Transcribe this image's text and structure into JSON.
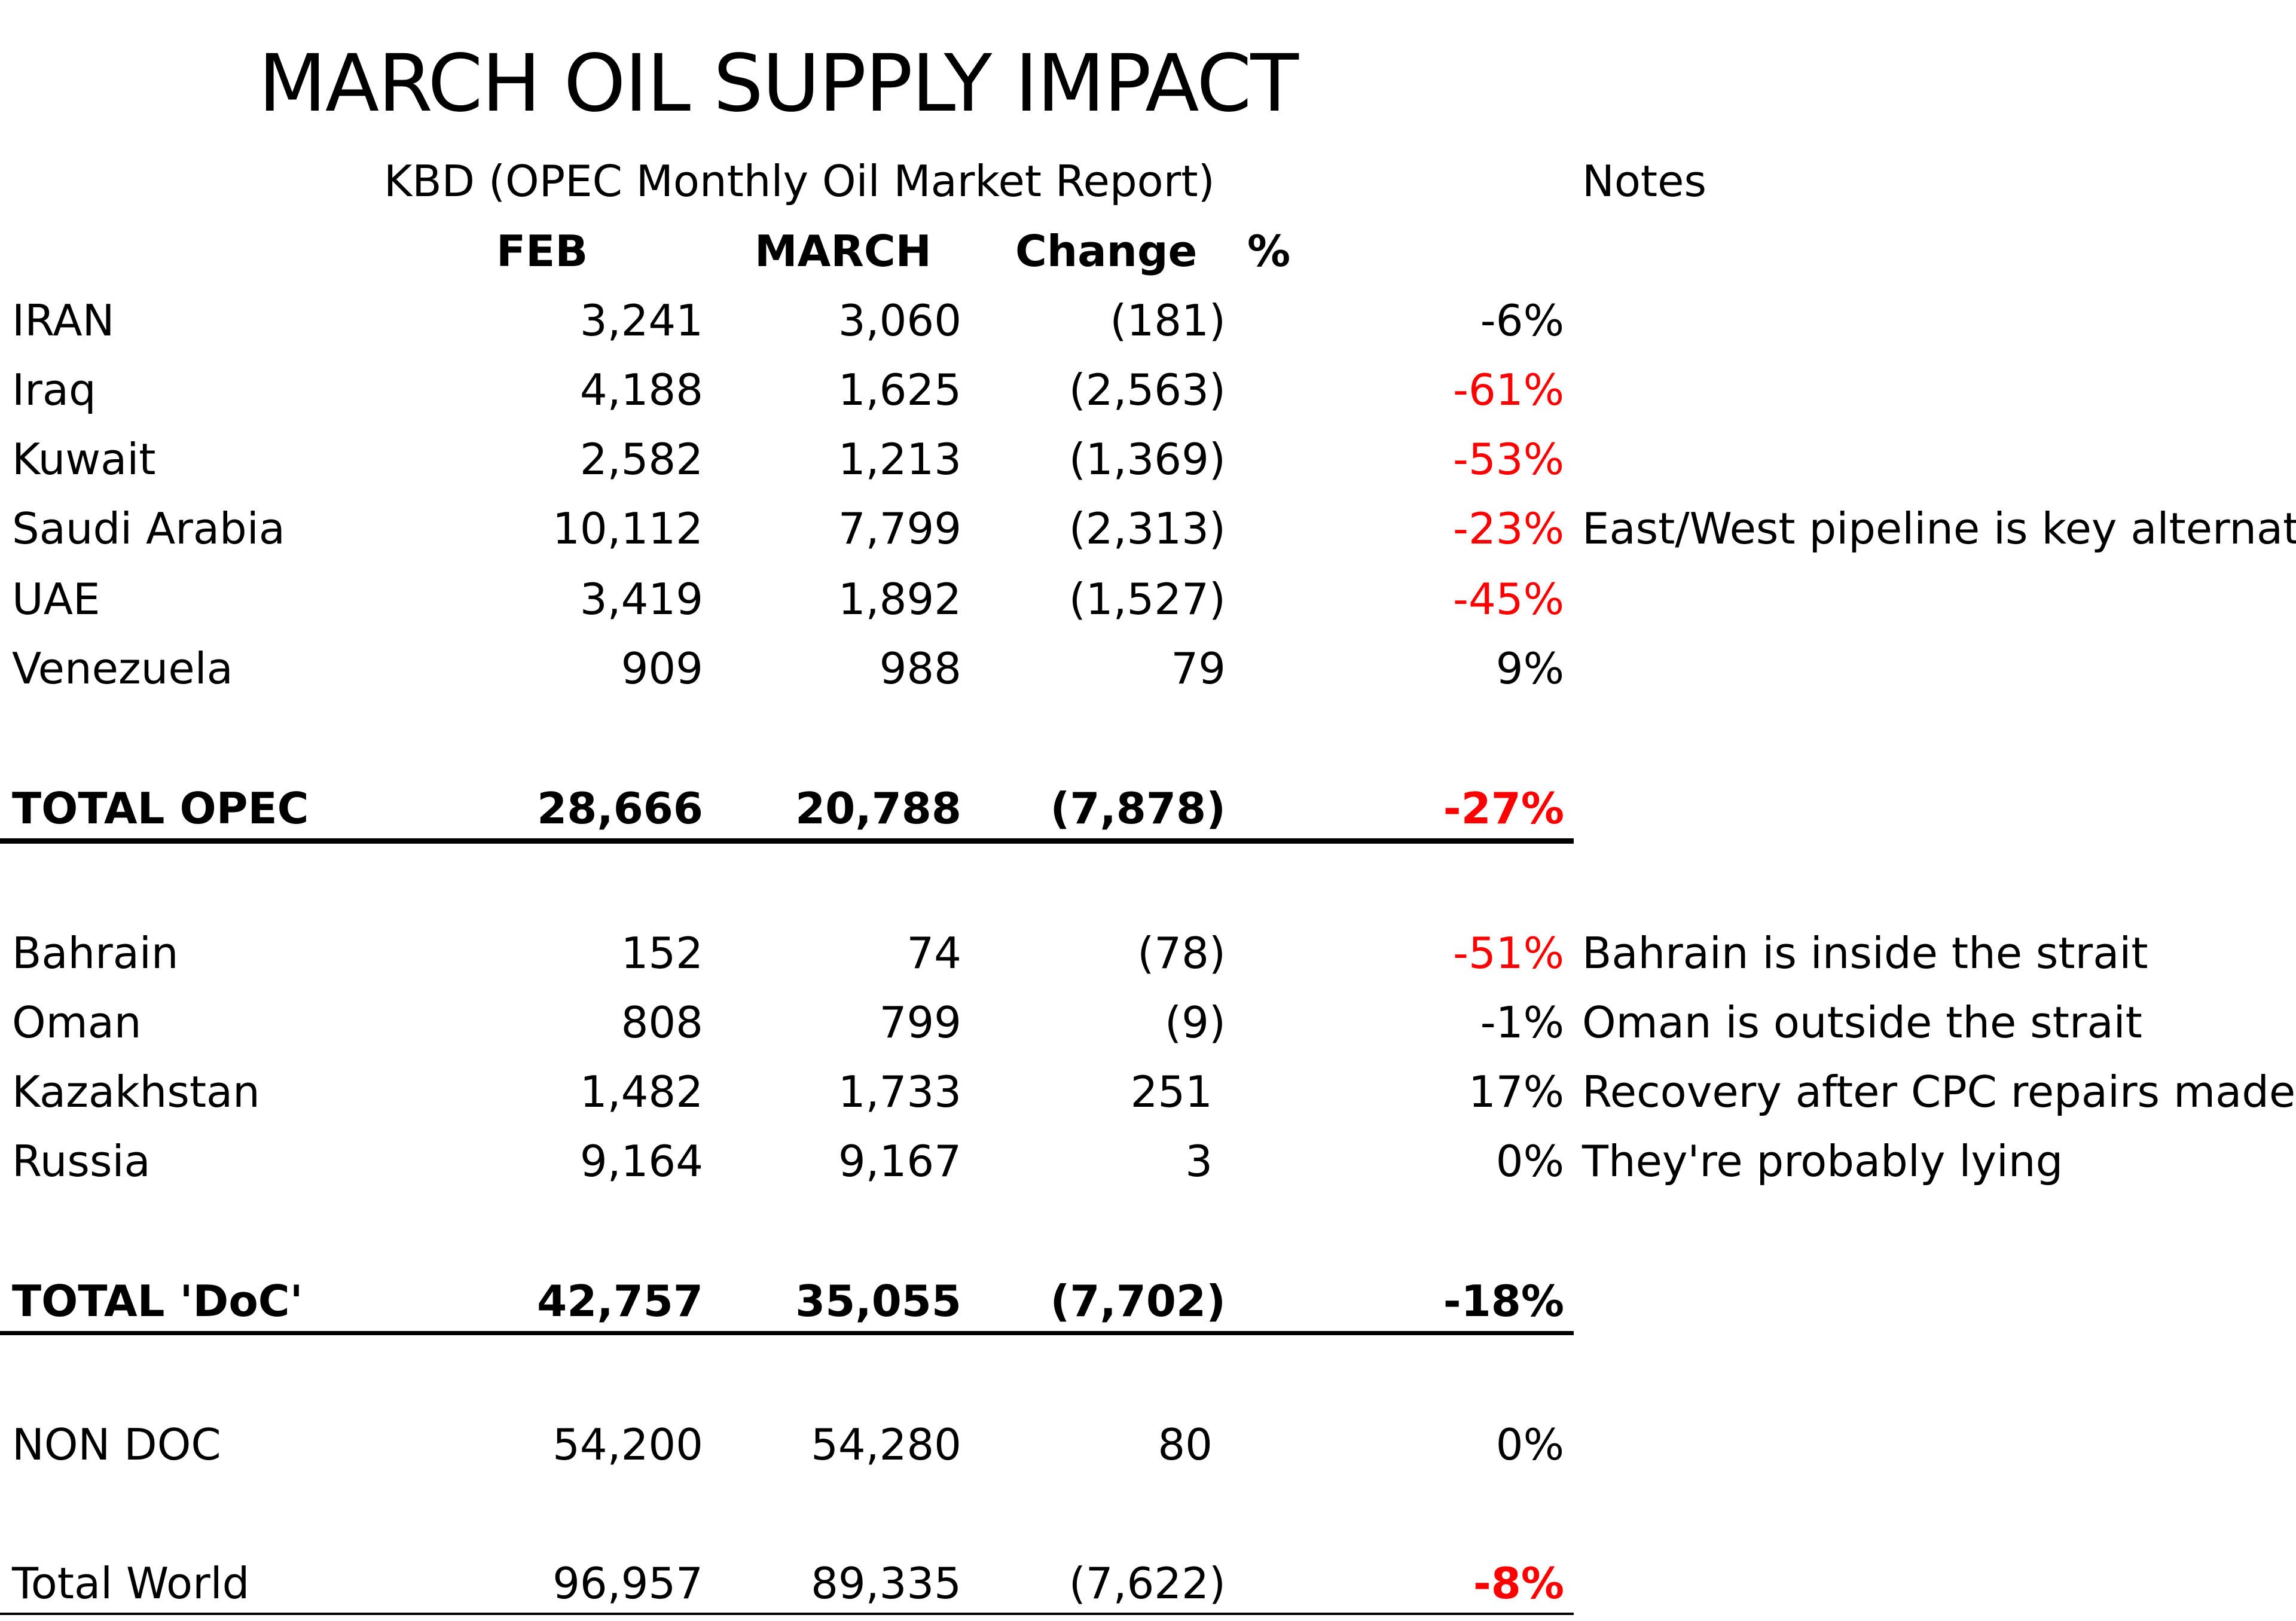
{
  "title": "MARCH OIL SUPPLY IMPACT",
  "subtitle": "KBD (OPEC Monthly Oil Market Report)",
  "notes_header": "Notes",
  "columns": {
    "feb": "FEB",
    "march": "MARCH",
    "change": "Change",
    "pct": "%"
  },
  "opec_rows": [
    {
      "label": "IRAN",
      "feb": "3,241",
      "march": "3,060",
      "change": "(181)",
      "pct": "-6%",
      "pct_red": false,
      "note": ""
    },
    {
      "label": "Iraq",
      "feb": "4,188",
      "march": "1,625",
      "change": "(2,563)",
      "pct": "-61%",
      "pct_red": true,
      "note": ""
    },
    {
      "label": "Kuwait",
      "feb": "2,582",
      "march": "1,213",
      "change": "(1,369)",
      "pct": "-53%",
      "pct_red": true,
      "note": ""
    },
    {
      "label": "Saudi Arabia",
      "feb": "10,112",
      "march": "7,799",
      "change": "(2,313)",
      "pct": "-23%",
      "pct_red": true,
      "note": "East/West pipeline is key alternati"
    },
    {
      "label": "UAE",
      "feb": "3,419",
      "march": "1,892",
      "change": "(1,527)",
      "pct": "-45%",
      "pct_red": true,
      "note": ""
    },
    {
      "label": "Venezuela",
      "feb": "909",
      "march": "988",
      "change": "79",
      "pct": "9%",
      "pct_red": false,
      "note": ""
    }
  ],
  "total_opec": {
    "label": "TOTAL OPEC",
    "feb": "28,666",
    "march": "20,788",
    "change": "(7,878)",
    "pct": "-27%",
    "pct_red": true
  },
  "doc_rows": [
    {
      "label": "Bahrain",
      "feb": "152",
      "march": "74",
      "change": "(78)",
      "pct": "-51%",
      "pct_red": true,
      "note": "Bahrain is inside the strait"
    },
    {
      "label": "Oman",
      "feb": "808",
      "march": "799",
      "change": "(9)",
      "pct": "-1%",
      "pct_red": false,
      "note": "Oman is outside the strait"
    },
    {
      "label": "Kazakhstan",
      "feb": "1,482",
      "march": "1,733",
      "change": "251",
      "pct": "17%",
      "pct_red": false,
      "note": "Recovery after CPC repairs made"
    },
    {
      "label": "Russia",
      "feb": "9,164",
      "march": "9,167",
      "change": "3",
      "pct": "0%",
      "pct_red": false,
      "note": "They're probably lying"
    }
  ],
  "total_doc": {
    "label": "TOTAL 'DoC'",
    "feb": "42,757",
    "march": "35,055",
    "change": "(7,702)",
    "pct": "-18%",
    "pct_red": false
  },
  "non_doc": {
    "label": "NON DOC",
    "feb": "54,200",
    "march": "54,280",
    "change": "80",
    "pct": "0%",
    "pct_red": false
  },
  "total_world": {
    "label": "Total World",
    "feb": "96,957",
    "march": "89,335",
    "change": "(7,622)",
    "pct": "-8%",
    "pct_red": true
  },
  "colors": {
    "negative_pct": "#ff0000",
    "text": "#000000",
    "background": "#ffffff"
  }
}
